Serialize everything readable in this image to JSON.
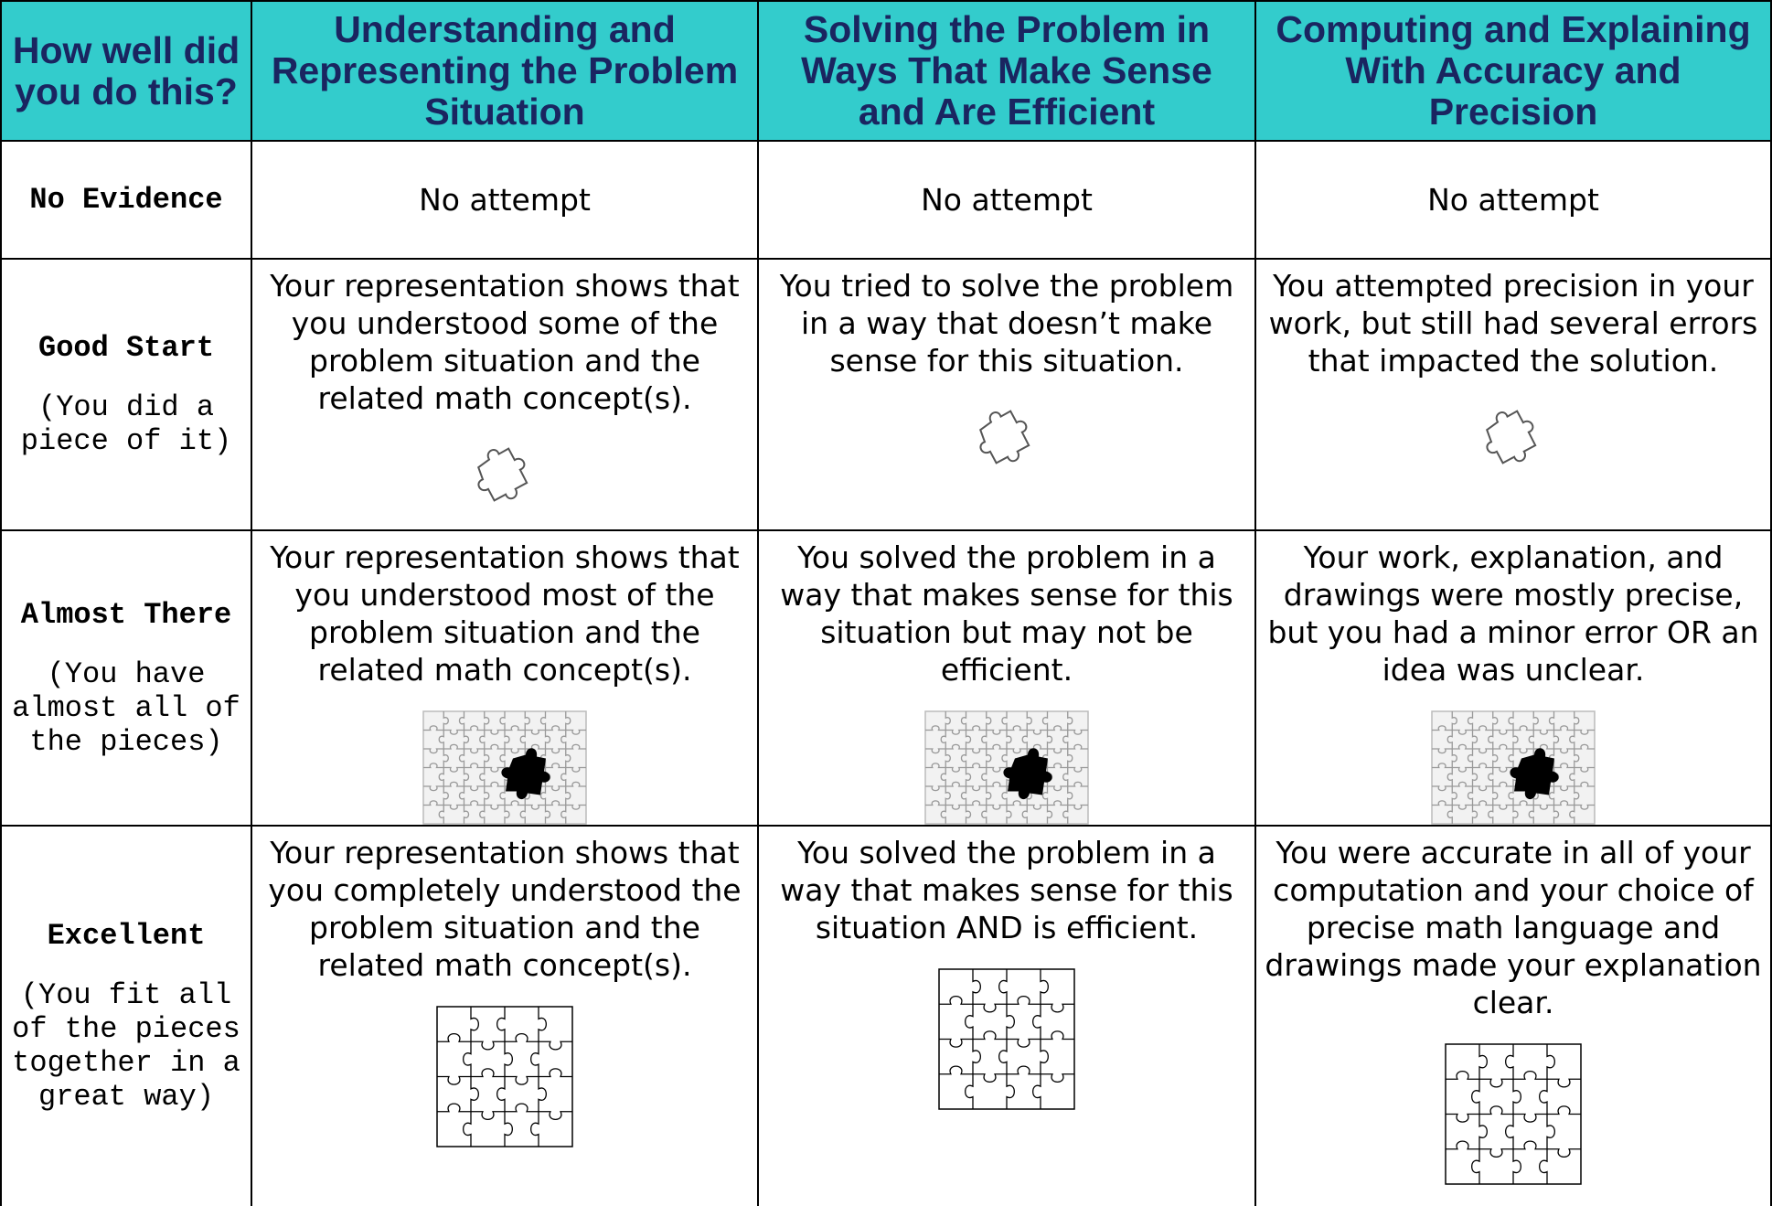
{
  "table": {
    "header": [
      "How well did you do this?",
      "Understanding and Representing the Problem Situation",
      "Solving the Problem in Ways That Make Sense and Are Efficient",
      "Computing and Explaining With Accuracy and Precision"
    ],
    "rows": [
      {
        "label": "No Evidence",
        "cells": [
          "No attempt",
          "No attempt",
          "No attempt"
        ]
      },
      {
        "label": "Good Start",
        "sublabel": "(You did a piece of it)",
        "cells": [
          "Your representation shows that you understood some of the problem situation and the related math concept(s).",
          "You tried to solve the problem in a way that doesn’t make sense for this situation.",
          "You attempted precision in your work, but still had several errors that impacted the solution."
        ]
      },
      {
        "label": "Almost There",
        "sublabel": "(You have almost all of the pieces)",
        "cells": [
          "Your representation shows that you understood most of the problem situation and the related math concept(s).",
          "You solved the problem in a way that makes sense for this situation but may not be efficient.",
          "Your work, explanation, and drawings were mostly precise, but you had a minor error OR an idea was unclear."
        ]
      },
      {
        "label": "Excellent",
        "sublabel": "(You fit all of the pieces together in a great way)",
        "cells": [
          "Your representation shows that you completely understood the problem situation and the related math concept(s).",
          "You solved the problem in a way that makes sense for this situation AND is efficient.",
          "You were accurate in all of your computation and your choice of precise math language and drawings made your explanation clear."
        ]
      }
    ]
  }
}
